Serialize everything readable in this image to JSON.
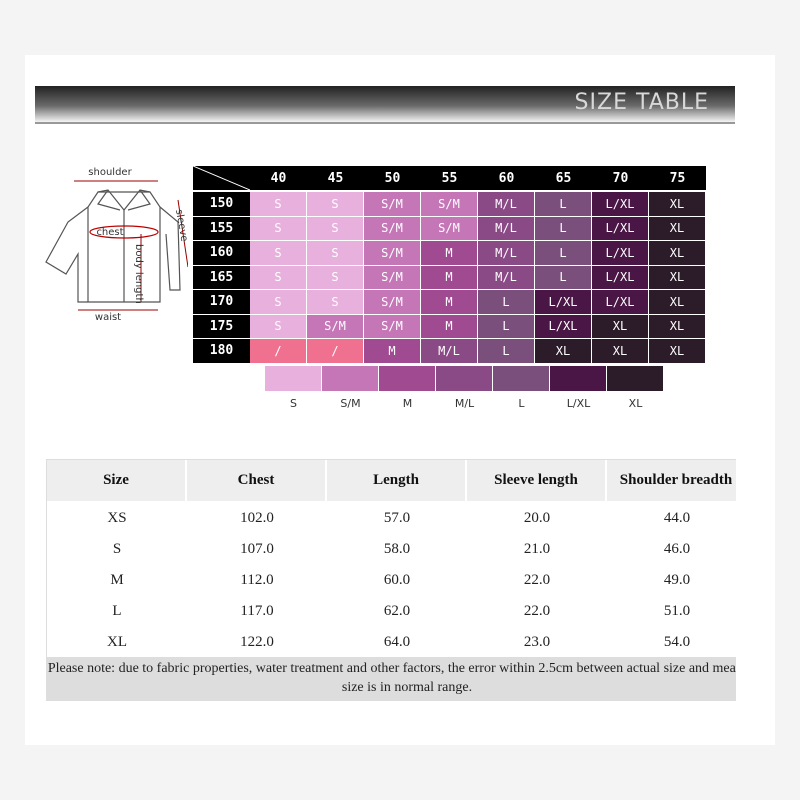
{
  "banner": {
    "title": "SIZE TABLE"
  },
  "diagram": {
    "labels": [
      "shoulder",
      "sleeve",
      "chest",
      "body length",
      "waist"
    ]
  },
  "grid": {
    "columns": [
      "40",
      "45",
      "50",
      "55",
      "60",
      "65",
      "70",
      "75"
    ],
    "rows": [
      {
        "height": "150",
        "cells": [
          "S",
          "S",
          "S/M",
          "S/M",
          "M/L",
          "L",
          "L/XL",
          "XL"
        ]
      },
      {
        "height": "155",
        "cells": [
          "S",
          "S",
          "S/M",
          "S/M",
          "M/L",
          "L",
          "L/XL",
          "XL"
        ]
      },
      {
        "height": "160",
        "cells": [
          "S",
          "S",
          "S/M",
          "M",
          "M/L",
          "L",
          "L/XL",
          "XL"
        ]
      },
      {
        "height": "165",
        "cells": [
          "S",
          "S",
          "S/M",
          "M",
          "M/L",
          "L",
          "L/XL",
          "XL"
        ]
      },
      {
        "height": "170",
        "cells": [
          "S",
          "S",
          "S/M",
          "M",
          "L",
          "L/XL",
          "L/XL",
          "XL"
        ]
      },
      {
        "height": "175",
        "cells": [
          "S",
          "S/M",
          "S/M",
          "M",
          "L",
          "L/XL",
          "XL",
          "XL"
        ]
      },
      {
        "height": "180",
        "cells": [
          "/",
          "/",
          "M",
          "M/L",
          "L",
          "XL",
          "XL",
          "XL"
        ]
      }
    ]
  },
  "legend": [
    {
      "label": "S",
      "color": "#e8b0dd"
    },
    {
      "label": "S/M",
      "color": "#c576b6"
    },
    {
      "label": "M",
      "color": "#a04a92"
    },
    {
      "label": "M/L",
      "color": "#8a4a86"
    },
    {
      "label": "L",
      "color": "#7a4f7c"
    },
    {
      "label": "L/XL",
      "color": "#4a1646"
    },
    {
      "label": "XL",
      "color": "#2c1c2a"
    }
  ],
  "table": {
    "headers": [
      "Size",
      "Chest",
      "Length",
      "Sleeve length",
      "Shoulder breadth"
    ],
    "rows": [
      [
        "XS",
        "102.0",
        "57.0",
        "20.0",
        "44.0"
      ],
      [
        "S",
        "107.0",
        "58.0",
        "21.0",
        "46.0"
      ],
      [
        "M",
        "112.0",
        "60.0",
        "22.0",
        "49.0"
      ],
      [
        "L",
        "117.0",
        "62.0",
        "22.0",
        "51.0"
      ],
      [
        "XL",
        "122.0",
        "64.0",
        "23.0",
        "54.0"
      ]
    ],
    "note": "Please note: due to fabric properties, water treatment and other factors, the error within 2.5cm between actual size and measured size is in normal range."
  }
}
